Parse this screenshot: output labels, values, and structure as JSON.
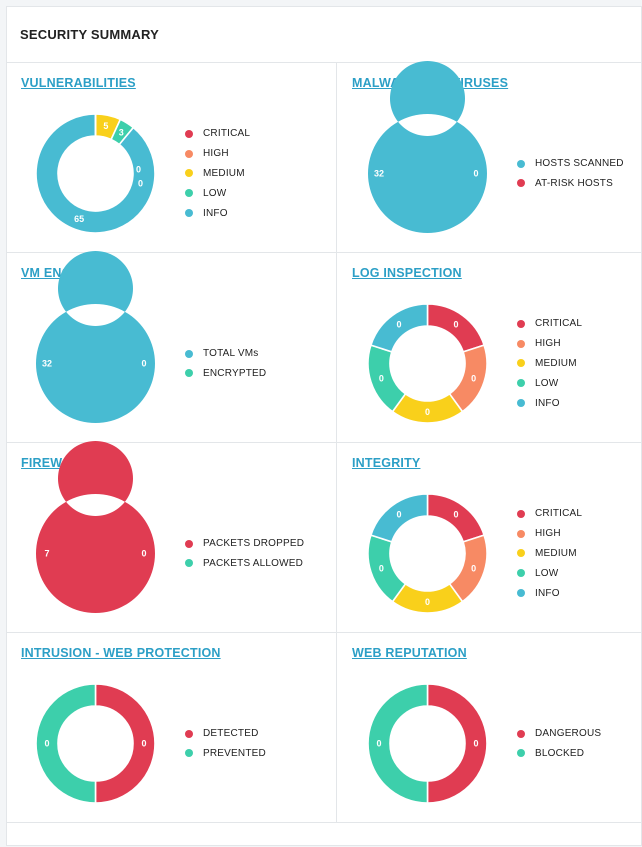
{
  "title": "SECURITY SUMMARY",
  "colors": {
    "critical": "#e03c52",
    "high": "#f78a64",
    "medium": "#f9d01b",
    "low": "#3dcfab",
    "info": "#48bbd2",
    "link": "#2c9fc6"
  },
  "cards": [
    {
      "title": "VULNERABILITIES",
      "legend": [
        "CRITICAL",
        "HIGH",
        "MEDIUM",
        "LOW",
        "INFO"
      ],
      "legend_colors": [
        "critical",
        "high",
        "medium",
        "low",
        "info"
      ],
      "chart_data": {
        "type": "pie",
        "labels": [
          "CRITICAL",
          "HIGH",
          "MEDIUM",
          "LOW",
          "INFO"
        ],
        "values": [
          0,
          0,
          5,
          3,
          65
        ]
      }
    },
    {
      "title": "MALWARE AND VIRUSES",
      "legend": [
        "HOSTS SCANNED",
        "AT-RISK HOSTS"
      ],
      "legend_colors": [
        "info",
        "critical"
      ],
      "chart_data": {
        "type": "pie",
        "labels": [
          "HOSTS SCANNED",
          "AT-RISK HOSTS"
        ],
        "values": [
          32,
          0
        ]
      }
    },
    {
      "title": "VM ENCRYPTION",
      "legend": [
        "TOTAL VMs",
        "ENCRYPTED"
      ],
      "legend_colors": [
        "info",
        "low"
      ],
      "chart_data": {
        "type": "pie",
        "labels": [
          "TOTAL VMs",
          "ENCRYPTED"
        ],
        "values": [
          32,
          0
        ]
      }
    },
    {
      "title": "LOG INSPECTION",
      "legend": [
        "CRITICAL",
        "HIGH",
        "MEDIUM",
        "LOW",
        "INFO"
      ],
      "legend_colors": [
        "critical",
        "high",
        "medium",
        "low",
        "info"
      ],
      "chart_data": {
        "type": "pie",
        "labels": [
          "CRITICAL",
          "HIGH",
          "MEDIUM",
          "LOW",
          "INFO"
        ],
        "values": [
          0,
          0,
          0,
          0,
          0
        ]
      }
    },
    {
      "title": "FIREWALL",
      "legend": [
        "PACKETS DROPPED",
        "PACKETS ALLOWED"
      ],
      "legend_colors": [
        "critical",
        "low"
      ],
      "chart_data": {
        "type": "pie",
        "labels": [
          "PACKETS DROPPED",
          "PACKETS ALLOWED"
        ],
        "values": [
          7,
          0
        ]
      }
    },
    {
      "title": "INTEGRITY",
      "legend": [
        "CRITICAL",
        "HIGH",
        "MEDIUM",
        "LOW",
        "INFO"
      ],
      "legend_colors": [
        "critical",
        "high",
        "medium",
        "low",
        "info"
      ],
      "chart_data": {
        "type": "pie",
        "labels": [
          "CRITICAL",
          "HIGH",
          "MEDIUM",
          "LOW",
          "INFO"
        ],
        "values": [
          0,
          0,
          0,
          0,
          0
        ]
      }
    },
    {
      "title": "INTRUSION - WEB PROTECTION",
      "legend": [
        "DETECTED",
        "PREVENTED"
      ],
      "legend_colors": [
        "critical",
        "low"
      ],
      "chart_data": {
        "type": "pie",
        "labels": [
          "DETECTED",
          "PREVENTED"
        ],
        "values": [
          0,
          0
        ]
      }
    },
    {
      "title": "WEB REPUTATION",
      "legend": [
        "DANGEROUS",
        "BLOCKED"
      ],
      "legend_colors": [
        "critical",
        "low"
      ],
      "chart_data": {
        "type": "pie",
        "labels": [
          "DANGEROUS",
          "BLOCKED"
        ],
        "values": [
          0,
          0
        ]
      }
    }
  ]
}
